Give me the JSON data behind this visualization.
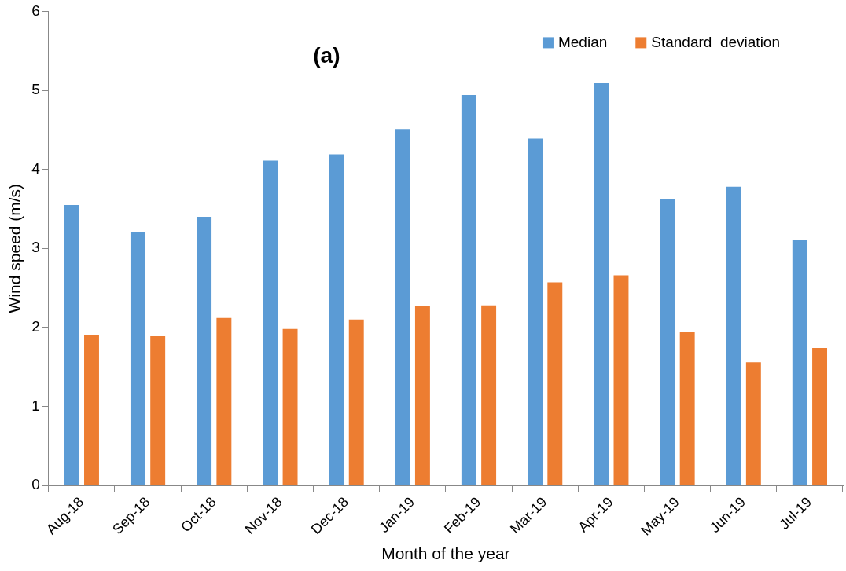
{
  "chart_data": {
    "type": "bar",
    "xlabel": "Month of the year",
    "ylabel": "Wind speed (m/s)",
    "annotations": [
      "(a)"
    ],
    "categories": [
      "Aug-18",
      "Sep-18",
      "Oct-18",
      "Nov-18",
      "Dec-18",
      "Jan-19",
      "Feb-19",
      "Mar-19",
      "Apr-19",
      "May-19",
      "Jun-19",
      "Jul-19"
    ],
    "series": [
      {
        "name": "Median",
        "color": "#5b9bd5",
        "values": [
          3.55,
          3.2,
          3.4,
          4.11,
          4.19,
          4.51,
          4.94,
          4.39,
          5.09,
          3.62,
          3.78,
          3.11
        ]
      },
      {
        "name": "Standard  deviation",
        "color": "#ed7d31",
        "values": [
          1.9,
          1.89,
          2.12,
          1.98,
          2.1,
          2.27,
          2.28,
          2.57,
          2.66,
          1.94,
          1.56,
          1.74
        ]
      }
    ],
    "ylim": [
      0,
      6
    ],
    "yticks": [
      0,
      1,
      2,
      3,
      4,
      5,
      6
    ],
    "grid": false,
    "legend": "top right"
  }
}
